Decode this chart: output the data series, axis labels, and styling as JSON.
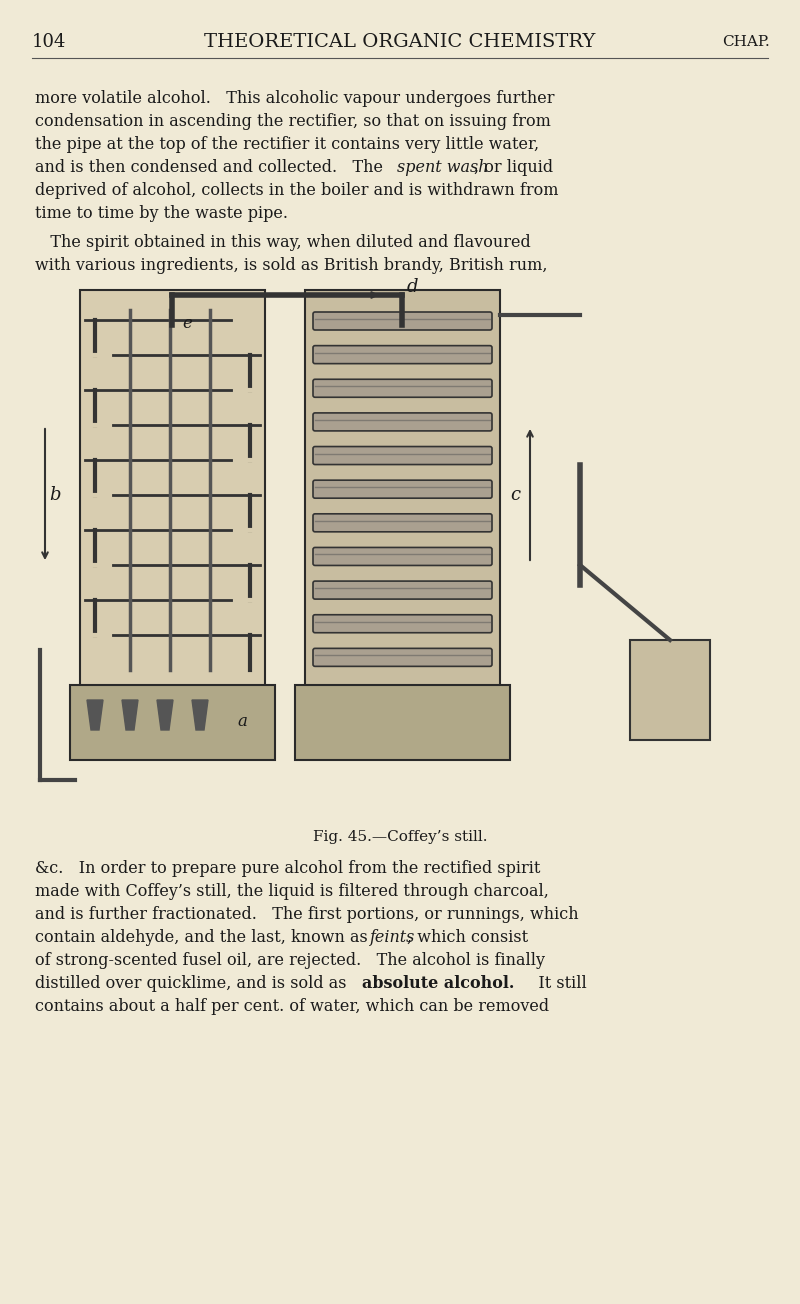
{
  "bg_color": "#f0ead6",
  "text_color": "#1a1a1a",
  "page_number": "104",
  "header_title": "THEORETICAL ORGANIC CHEMISTRY",
  "header_right": "CHAP.",
  "para1": "more volatile alcohol.   This alcoholic vapour undergoes further\ncondensation in ascending the rectifier, so that on issuing from\nthe pipe at the top of the rectifier it contains very little water,\nand is then condensed and collected.   The spent wash, or liquid\ndeprived of alcohol, collects in the boiler and is withdrawn from\ntime to time by the waste pipe.",
  "para1_italic_start": "spent wash",
  "para2": "   The spirit obtained in this way, when diluted and flavoured\nwith various ingredients, is sold as British brandy, British rum,",
  "fig_caption": "Fig. 45.—Coffey’s still.",
  "para3": "&c.   In order to prepare pure alcohol from the rectified spirit\nmade with Coffey’s still, the liquid is filtered through charcoal,\nand is further fractionated.   The first portions, or runnings, which\ncontain aldehyde, and the last, known as feints, which consist\nof strong-scented fusel oil, are rejected.   The alcohol is finally\ndistilled over quicklime, and is sold as absolute alcohol.   It still\ncontains about a half per cent. of water, which can be removed",
  "para3_italic_word": "feints",
  "para3_bold_phrase": "absolute alcohol.",
  "figsize": [
    8.0,
    13.04
  ],
  "dpi": 100
}
